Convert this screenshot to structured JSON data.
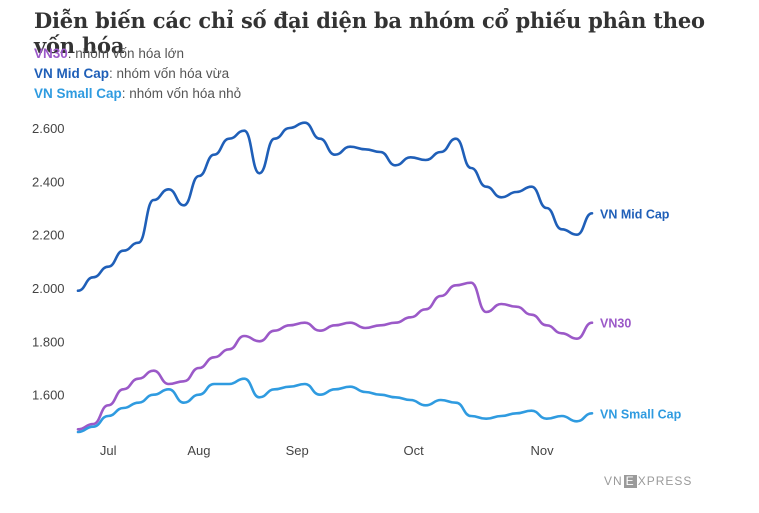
{
  "title": "Diễn biến các chỉ số đại diện ba nhóm cổ phiếu phân theo vốn hóa",
  "legend": [
    {
      "name": "VN30",
      "desc": ": nhóm vốn hóa lớn",
      "color": "#9b59c8"
    },
    {
      "name": "VN Mid Cap",
      "desc": ": nhóm vốn hóa vừa",
      "color": "#1f5fb8"
    },
    {
      "name": "VN Small Cap",
      "desc": ": nhóm vốn hóa nhỏ",
      "color": "#2f9be0"
    }
  ],
  "brand": {
    "pre": "VN",
    "mid": "E",
    "post": "XPRESS"
  },
  "chart_data": {
    "type": "line",
    "title": "Diễn biến các chỉ số đại diện ba nhóm cổ phiếu phân theo vốn hóa",
    "xlabel": "",
    "ylabel": "",
    "x_ticks": [
      "Jul",
      "Aug",
      "Sep",
      "Oct",
      "Nov"
    ],
    "y_ticks": [
      "1.600",
      "1.800",
      "2.000",
      "2.200",
      "2.400",
      "2.600"
    ],
    "y_tick_values": [
      1600,
      1800,
      2000,
      2200,
      2400,
      2600
    ],
    "ylim": [
      1460,
      2630
    ],
    "grid": false,
    "legend": "top-left",
    "x": [
      "Jul-01",
      "Jul-05",
      "Jul-10",
      "Jul-15",
      "Jul-20",
      "Jul-25",
      "Jul-28",
      "Aug-01",
      "Aug-05",
      "Aug-10",
      "Aug-15",
      "Aug-20",
      "Aug-25",
      "Aug-29",
      "Sep-02",
      "Sep-05",
      "Sep-08",
      "Sep-12",
      "Sep-16",
      "Sep-20",
      "Sep-25",
      "Sep-30",
      "Oct-03",
      "Oct-06",
      "Oct-10",
      "Oct-14",
      "Oct-17",
      "Oct-20",
      "Oct-24",
      "Oct-28",
      "Nov-01",
      "Nov-05",
      "Nov-08",
      "Nov-12",
      "Nov-15"
    ],
    "series": [
      {
        "name": "VN Mid Cap",
        "end_label": "VN Mid Cap",
        "color": "#1f5fb8",
        "values": [
          1990,
          2040,
          2080,
          2140,
          2170,
          2330,
          2370,
          2310,
          2420,
          2500,
          2560,
          2590,
          2430,
          2560,
          2600,
          2620,
          2560,
          2500,
          2530,
          2520,
          2510,
          2460,
          2490,
          2480,
          2510,
          2560,
          2450,
          2380,
          2340,
          2360,
          2380,
          2300,
          2220,
          2200,
          2280
        ]
      },
      {
        "name": "VN30",
        "end_label": "VN30",
        "color": "#9b59c8",
        "values": [
          1470,
          1490,
          1560,
          1620,
          1660,
          1690,
          1640,
          1650,
          1700,
          1740,
          1770,
          1820,
          1800,
          1840,
          1860,
          1870,
          1840,
          1860,
          1870,
          1850,
          1860,
          1870,
          1890,
          1920,
          1970,
          2010,
          2020,
          1910,
          1940,
          1930,
          1900,
          1860,
          1830,
          1810,
          1870
        ]
      },
      {
        "name": "VN Small Cap",
        "end_label": "VN Small Cap",
        "color": "#2f9be0",
        "values": [
          1460,
          1480,
          1520,
          1550,
          1570,
          1600,
          1620,
          1570,
          1600,
          1640,
          1640,
          1660,
          1590,
          1620,
          1630,
          1640,
          1600,
          1620,
          1630,
          1610,
          1600,
          1590,
          1580,
          1560,
          1580,
          1570,
          1520,
          1510,
          1520,
          1530,
          1540,
          1510,
          1520,
          1500,
          1530
        ]
      }
    ]
  }
}
